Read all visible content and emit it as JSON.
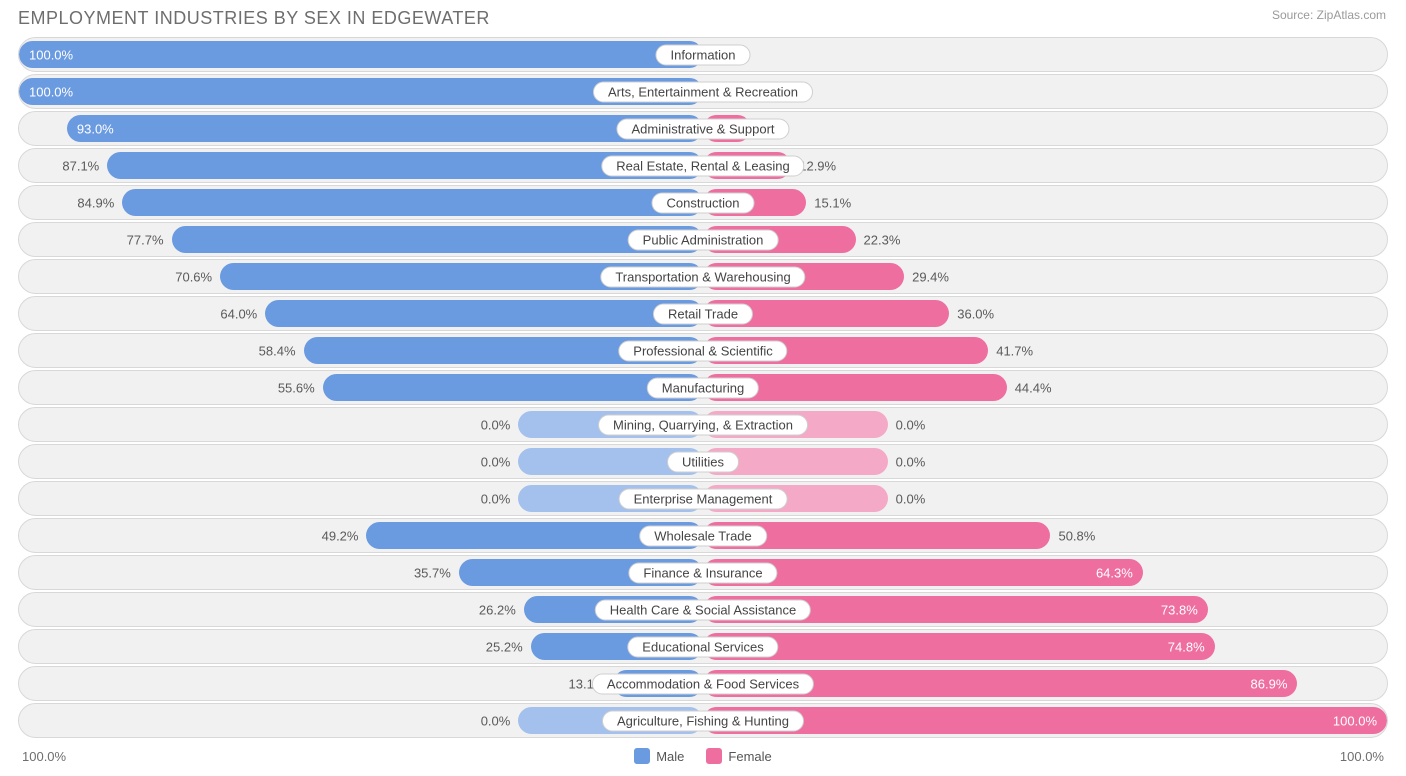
{
  "title": "EMPLOYMENT INDUSTRIES BY SEX IN EDGEWATER",
  "source": "Source: ZipAtlas.com",
  "colors": {
    "male_fill": "#6a9ae0",
    "female_fill": "#ee6ea0",
    "male_light": "#a3c1ec",
    "female_light": "#f4a9c6",
    "row_bg": "#f1f1f1",
    "row_border": "#d8d8d8",
    "label_bg": "#ffffff",
    "label_border": "#cfcfcf",
    "title_color": "#6e6e6e",
    "text_color": "#5a5a5a"
  },
  "axis": {
    "left_label": "100.0%",
    "right_label": "100.0%"
  },
  "legend": {
    "male": "Male",
    "female": "Female"
  },
  "default_half_bar_pct": 27,
  "rows": [
    {
      "category": "Information",
      "male": 100.0,
      "female": 0.0
    },
    {
      "category": "Arts, Entertainment & Recreation",
      "male": 100.0,
      "female": 0.0
    },
    {
      "category": "Administrative & Support",
      "male": 93.0,
      "female": 7.0
    },
    {
      "category": "Real Estate, Rental & Leasing",
      "male": 87.1,
      "female": 12.9
    },
    {
      "category": "Construction",
      "male": 84.9,
      "female": 15.1
    },
    {
      "category": "Public Administration",
      "male": 77.7,
      "female": 22.3
    },
    {
      "category": "Transportation & Warehousing",
      "male": 70.6,
      "female": 29.4
    },
    {
      "category": "Retail Trade",
      "male": 64.0,
      "female": 36.0
    },
    {
      "category": "Professional & Scientific",
      "male": 58.4,
      "female": 41.7
    },
    {
      "category": "Manufacturing",
      "male": 55.6,
      "female": 44.4
    },
    {
      "category": "Mining, Quarrying, & Extraction",
      "male": 0.0,
      "female": 0.0,
      "neutral": true
    },
    {
      "category": "Utilities",
      "male": 0.0,
      "female": 0.0,
      "neutral": true
    },
    {
      "category": "Enterprise Management",
      "male": 0.0,
      "female": 0.0,
      "neutral": true
    },
    {
      "category": "Wholesale Trade",
      "male": 49.2,
      "female": 50.8
    },
    {
      "category": "Finance & Insurance",
      "male": 35.7,
      "female": 64.3
    },
    {
      "category": "Health Care & Social Assistance",
      "male": 26.2,
      "female": 73.8
    },
    {
      "category": "Educational Services",
      "male": 25.2,
      "female": 74.8
    },
    {
      "category": "Accommodation & Food Services",
      "male": 13.1,
      "female": 86.9
    },
    {
      "category": "Agriculture, Fishing & Hunting",
      "male": 0.0,
      "female": 100.0,
      "neutral_male": true
    }
  ]
}
